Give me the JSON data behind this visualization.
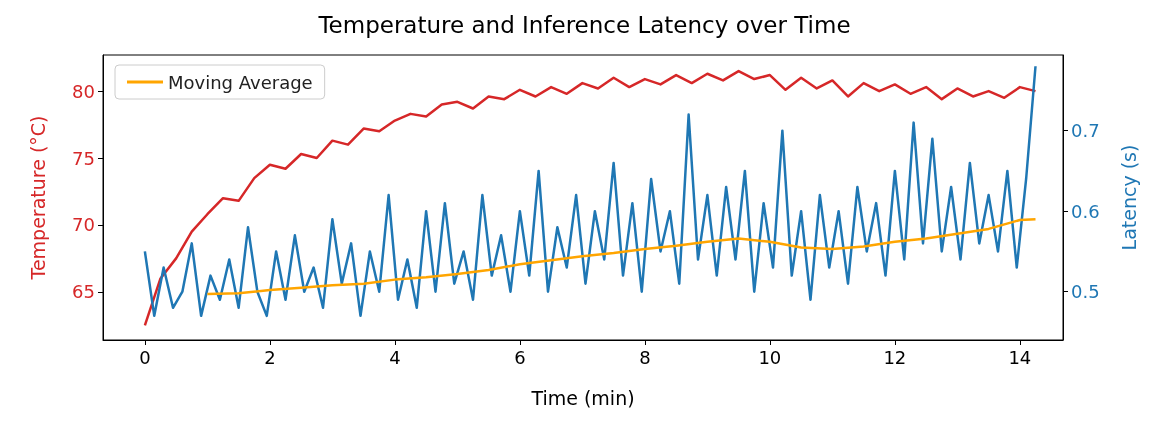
{
  "chart_data": {
    "type": "line",
    "title": "Temperature and Inference Latency over Time",
    "xlabel": "Time (min)",
    "ylabel": "Temperature (°C)",
    "y2label": "Latency (s)",
    "xlim": [
      -0.67,
      14.69
    ],
    "xticks": [
      0,
      2,
      4,
      6,
      8,
      10,
      12,
      14
    ],
    "ylim": [
      61.4,
      82.7
    ],
    "yticks": [
      65,
      70,
      75,
      80
    ],
    "y2lim": [
      0.44,
      0.794
    ],
    "y2ticks": [
      0.5,
      0.6,
      0.7
    ],
    "grid": false,
    "legend": "top left",
    "series": [
      {
        "color": "#d62728",
        "x": [
          0,
          0.25,
          0.5,
          0.75,
          1,
          1.25,
          1.5,
          1.75,
          2,
          2.25,
          2.5,
          2.75,
          3,
          3.25,
          3.5,
          3.75,
          4,
          4.25,
          4.5,
          4.75,
          5,
          5.25,
          5.5,
          5.75,
          6,
          6.25,
          6.5,
          6.75,
          7,
          7.25,
          7.5,
          7.75,
          8,
          8.25,
          8.5,
          8.75,
          9,
          9.25,
          9.5,
          9.75,
          10,
          10.25,
          10.5,
          10.75,
          11,
          11.25,
          11.5,
          11.75,
          12,
          12.25,
          12.5,
          12.75,
          13,
          13.25,
          13.5,
          13.75,
          14,
          14.25
        ],
        "values": [
          62.5,
          66,
          67.5,
          69.5,
          70.8,
          72,
          71.8,
          73.5,
          74.5,
          74.2,
          75.3,
          75,
          76.3,
          76,
          77.2,
          77,
          77.8,
          78.3,
          78.1,
          79,
          79.2,
          78.7,
          79.6,
          79.4,
          80.1,
          79.6,
          80.3,
          79.8,
          80.6,
          80.2,
          81,
          80.3,
          80.9,
          80.5,
          81.2,
          80.6,
          81.3,
          80.8,
          81.5,
          80.9,
          81.2,
          80.1,
          81,
          80.2,
          80.8,
          79.6,
          80.6,
          80,
          80.5,
          79.8,
          80.3,
          79.4,
          80.2,
          79.6,
          80,
          79.5,
          80.3,
          80
        ]
      },
      {
        "color": "#1f77b4",
        "axis": "y2",
        "x": [
          0,
          0.15,
          0.3,
          0.45,
          0.6,
          0.75,
          0.9,
          1.05,
          1.2,
          1.35,
          1.5,
          1.65,
          1.8,
          1.95,
          2.1,
          2.25,
          2.4,
          2.55,
          2.7,
          2.85,
          3,
          3.15,
          3.3,
          3.45,
          3.6,
          3.75,
          3.9,
          4.05,
          4.2,
          4.35,
          4.5,
          4.65,
          4.8,
          4.95,
          5.1,
          5.25,
          5.4,
          5.55,
          5.7,
          5.85,
          6,
          6.15,
          6.3,
          6.45,
          6.6,
          6.75,
          6.9,
          7.05,
          7.2,
          7.35,
          7.5,
          7.65,
          7.8,
          7.95,
          8.1,
          8.25,
          8.4,
          8.55,
          8.7,
          8.85,
          9,
          9.15,
          9.3,
          9.45,
          9.6,
          9.75,
          9.9,
          10.05,
          10.2,
          10.35,
          10.5,
          10.65,
          10.8,
          10.95,
          11.1,
          11.25,
          11.4,
          11.55,
          11.7,
          11.85,
          12,
          12.15,
          12.3,
          12.45,
          12.6,
          12.75,
          12.9,
          13.05,
          13.2,
          13.35,
          13.5,
          13.65,
          13.8,
          13.95,
          14.1,
          14.25
        ],
        "values": [
          0.55,
          0.47,
          0.53,
          0.48,
          0.5,
          0.56,
          0.47,
          0.52,
          0.49,
          0.54,
          0.48,
          0.58,
          0.5,
          0.47,
          0.55,
          0.49,
          0.57,
          0.5,
          0.53,
          0.48,
          0.59,
          0.51,
          0.56,
          0.47,
          0.55,
          0.5,
          0.62,
          0.49,
          0.54,
          0.48,
          0.6,
          0.5,
          0.61,
          0.51,
          0.55,
          0.49,
          0.62,
          0.52,
          0.57,
          0.5,
          0.6,
          0.52,
          0.65,
          0.5,
          0.58,
          0.53,
          0.62,
          0.51,
          0.6,
          0.54,
          0.66,
          0.52,
          0.61,
          0.5,
          0.64,
          0.55,
          0.6,
          0.51,
          0.72,
          0.54,
          0.62,
          0.52,
          0.63,
          0.54,
          0.65,
          0.5,
          0.61,
          0.53,
          0.7,
          0.52,
          0.6,
          0.49,
          0.62,
          0.53,
          0.6,
          0.51,
          0.63,
          0.55,
          0.61,
          0.52,
          0.65,
          0.54,
          0.71,
          0.56,
          0.69,
          0.55,
          0.63,
          0.54,
          0.66,
          0.56,
          0.62,
          0.55,
          0.65,
          0.53,
          0.64,
          0.78
        ]
      },
      {
        "name": "Moving Average",
        "color": "#ffa500",
        "axis": "y2",
        "x": [
          1,
          1.5,
          2,
          2.5,
          3,
          3.5,
          4,
          4.5,
          5,
          5.5,
          6,
          6.5,
          7,
          7.5,
          8,
          8.5,
          9,
          9.5,
          10,
          10.5,
          11,
          11.5,
          12,
          12.5,
          13,
          13.5,
          14,
          14.25
        ],
        "values": [
          0.497,
          0.498,
          0.502,
          0.505,
          0.508,
          0.51,
          0.515,
          0.518,
          0.522,
          0.527,
          0.534,
          0.539,
          0.544,
          0.548,
          0.553,
          0.557,
          0.562,
          0.566,
          0.562,
          0.555,
          0.553,
          0.556,
          0.562,
          0.566,
          0.572,
          0.578,
          0.589,
          0.59
        ]
      }
    ]
  }
}
